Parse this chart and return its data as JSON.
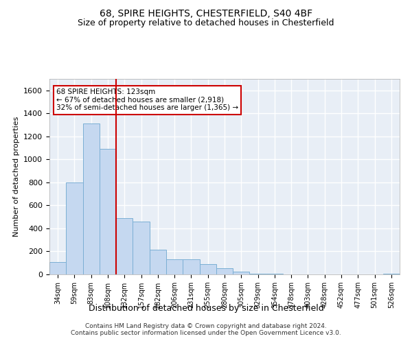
{
  "title_line1": "68, SPIRE HEIGHTS, CHESTERFIELD, S40 4BF",
  "title_line2": "Size of property relative to detached houses in Chesterfield",
  "xlabel": "Distribution of detached houses by size in Chesterfield",
  "ylabel": "Number of detached properties",
  "bar_color": "#c5d8f0",
  "bar_edge_color": "#7bafd4",
  "background_color": "#e8eef6",
  "grid_color": "#ffffff",
  "categories": [
    "34sqm",
    "59sqm",
    "83sqm",
    "108sqm",
    "132sqm",
    "157sqm",
    "182sqm",
    "206sqm",
    "231sqm",
    "255sqm",
    "280sqm",
    "305sqm",
    "329sqm",
    "354sqm",
    "378sqm",
    "403sqm",
    "428sqm",
    "452sqm",
    "477sqm",
    "501sqm",
    "526sqm"
  ],
  "values": [
    105,
    800,
    1310,
    1090,
    490,
    460,
    215,
    130,
    130,
    90,
    55,
    25,
    5,
    5,
    0,
    0,
    0,
    0,
    0,
    0,
    5
  ],
  "ylim": [
    0,
    1700
  ],
  "yticks": [
    0,
    200,
    400,
    600,
    800,
    1000,
    1200,
    1400,
    1600
  ],
  "vline_x": 3.5,
  "annotation_text": "68 SPIRE HEIGHTS: 123sqm\n← 67% of detached houses are smaller (2,918)\n32% of semi-detached houses are larger (1,365) →",
  "annotation_box_color": "#ffffff",
  "annotation_border_color": "#cc0000",
  "footnote": "Contains HM Land Registry data © Crown copyright and database right 2024.\nContains public sector information licensed under the Open Government Licence v3.0."
}
